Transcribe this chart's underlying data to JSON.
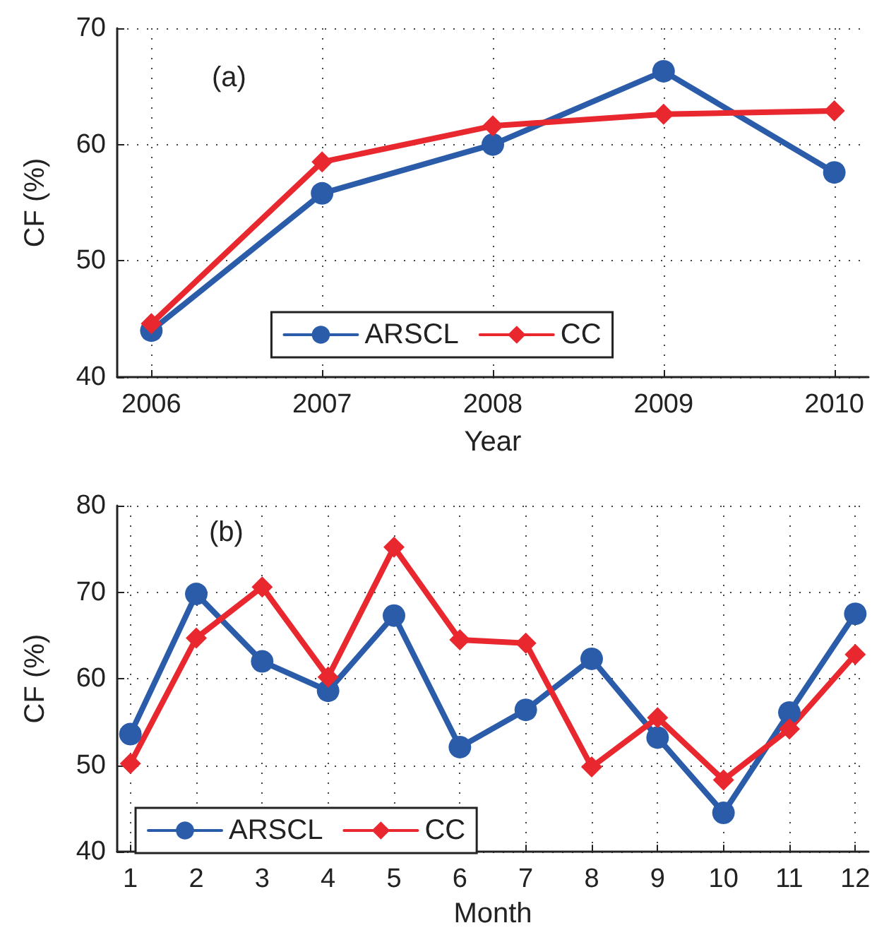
{
  "chart_data": [
    {
      "type": "line",
      "xlabel": "Year",
      "ylabel": "CF (%)",
      "annotations": [
        "(a)"
      ],
      "x": [
        2006,
        2007,
        2008,
        2009,
        2010
      ],
      "xlim": [
        2005.8,
        2010.2
      ],
      "xticks": [
        2006,
        2007,
        2008,
        2009,
        2010
      ],
      "ylim": [
        40,
        70
      ],
      "yticks": [
        40,
        50,
        60,
        70
      ],
      "grid": true,
      "legend": "bottom",
      "series": [
        {
          "name": "ARSCL",
          "color": "#2a5caa",
          "marker": "circle",
          "values": [
            44,
            55.8,
            60,
            66.3,
            57.6
          ]
        },
        {
          "name": "CC",
          "color": "#e8282e",
          "marker": "diamond",
          "values": [
            44.6,
            58.5,
            61.6,
            62.6,
            62.9
          ]
        }
      ]
    },
    {
      "type": "line",
      "xlabel": "Month",
      "ylabel": "CF (%)",
      "annotations": [
        "(b)"
      ],
      "x": [
        1,
        2,
        3,
        4,
        5,
        6,
        7,
        8,
        9,
        10,
        11,
        12
      ],
      "xlim": [
        0.8,
        12.2
      ],
      "xticks": [
        1,
        2,
        3,
        4,
        5,
        6,
        7,
        8,
        9,
        10,
        11,
        12
      ],
      "ylim": [
        40,
        80
      ],
      "yticks": [
        40,
        50,
        60,
        70,
        80
      ],
      "grid": true,
      "legend": "bottom left",
      "series": [
        {
          "name": "ARSCL",
          "color": "#2a5caa",
          "marker": "circle",
          "values": [
            53.6,
            69.8,
            62,
            58.6,
            67.3,
            52.1,
            56.4,
            62.3,
            53.2,
            44.5,
            56.1,
            67.5
          ]
        },
        {
          "name": "CC",
          "color": "#e8282e",
          "marker": "diamond",
          "values": [
            50.2,
            64.7,
            70.6,
            60.2,
            75.2,
            64.5,
            64.1,
            49.8,
            55.5,
            48.3,
            54.2,
            62.8
          ]
        }
      ]
    }
  ]
}
